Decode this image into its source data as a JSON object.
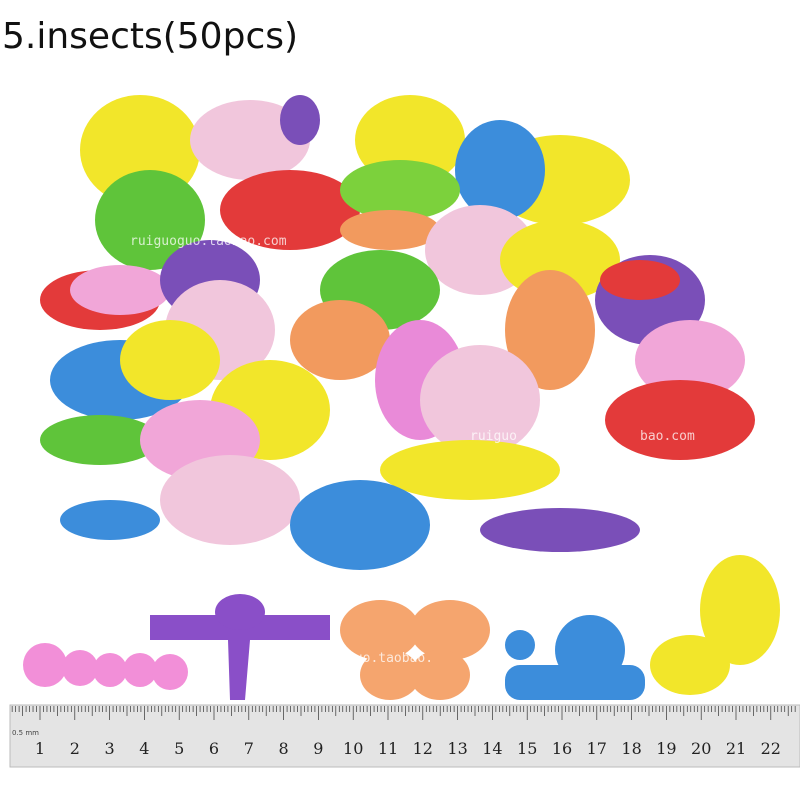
{
  "header": {
    "title": "5.insects(50pcs)"
  },
  "watermarks": [
    "ruiguoguo.taobao.com",
    "ruiguo",
    "bao.com",
    "ruiguoguo.taobao."
  ],
  "ruler": {
    "unit_note": "0.5 mm",
    "labels": [
      "1",
      "2",
      "3",
      "4",
      "5",
      "6",
      "7",
      "8",
      "9",
      "10",
      "11",
      "12",
      "13",
      "14",
      "15",
      "16",
      "17",
      "18",
      "19",
      "20",
      "21",
      "22"
    ]
  }
}
